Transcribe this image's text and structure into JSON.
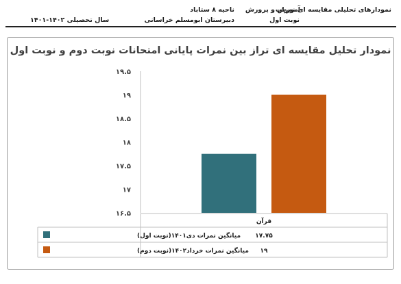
{
  "header": {
    "line1_right": "نمودارهای تحلیلی مقایسه ای نمرات",
    "line1_midright": "آموزش و پرورش",
    "line1_mid": "ناحیه ۸ ستاباد",
    "line2_midright": "نوبت اول",
    "line2_mid": "دبیرستان ابومسلم خراسانی",
    "line2_left": "سال تحصیلی ۱۴۰۲-۱۴۰۱"
  },
  "chart_data": {
    "type": "bar",
    "title": "نمودار تحلیل مقایسه ای تراز بین نمرات پایانی امتحانات نوبت دوم و نوبت اول",
    "categories": [
      "قرآن"
    ],
    "series": [
      {
        "name": "میانگین نمرات دی۱۴۰۱(نوبت اول)",
        "values": [
          17.75
        ],
        "label": "۱۷.۷۵",
        "color": "#31707b"
      },
      {
        "name": "میانگین نمرات خرداد۱۴۰۲(نوبت دوم)",
        "values": [
          19
        ],
        "label": "۱۹",
        "color": "#c55a11"
      }
    ],
    "ylim": [
      16.5,
      19.5
    ],
    "yticks": [
      16.5,
      17,
      17.5,
      18,
      18.5,
      19,
      19.5
    ],
    "ytick_labels": [
      "۱۶.۵",
      "۱۷",
      "۱۷.۵",
      "۱۸",
      "۱۸.۵",
      "۱۹",
      "۱۹.۵"
    ],
    "grid": false,
    "legend": "data-table"
  }
}
